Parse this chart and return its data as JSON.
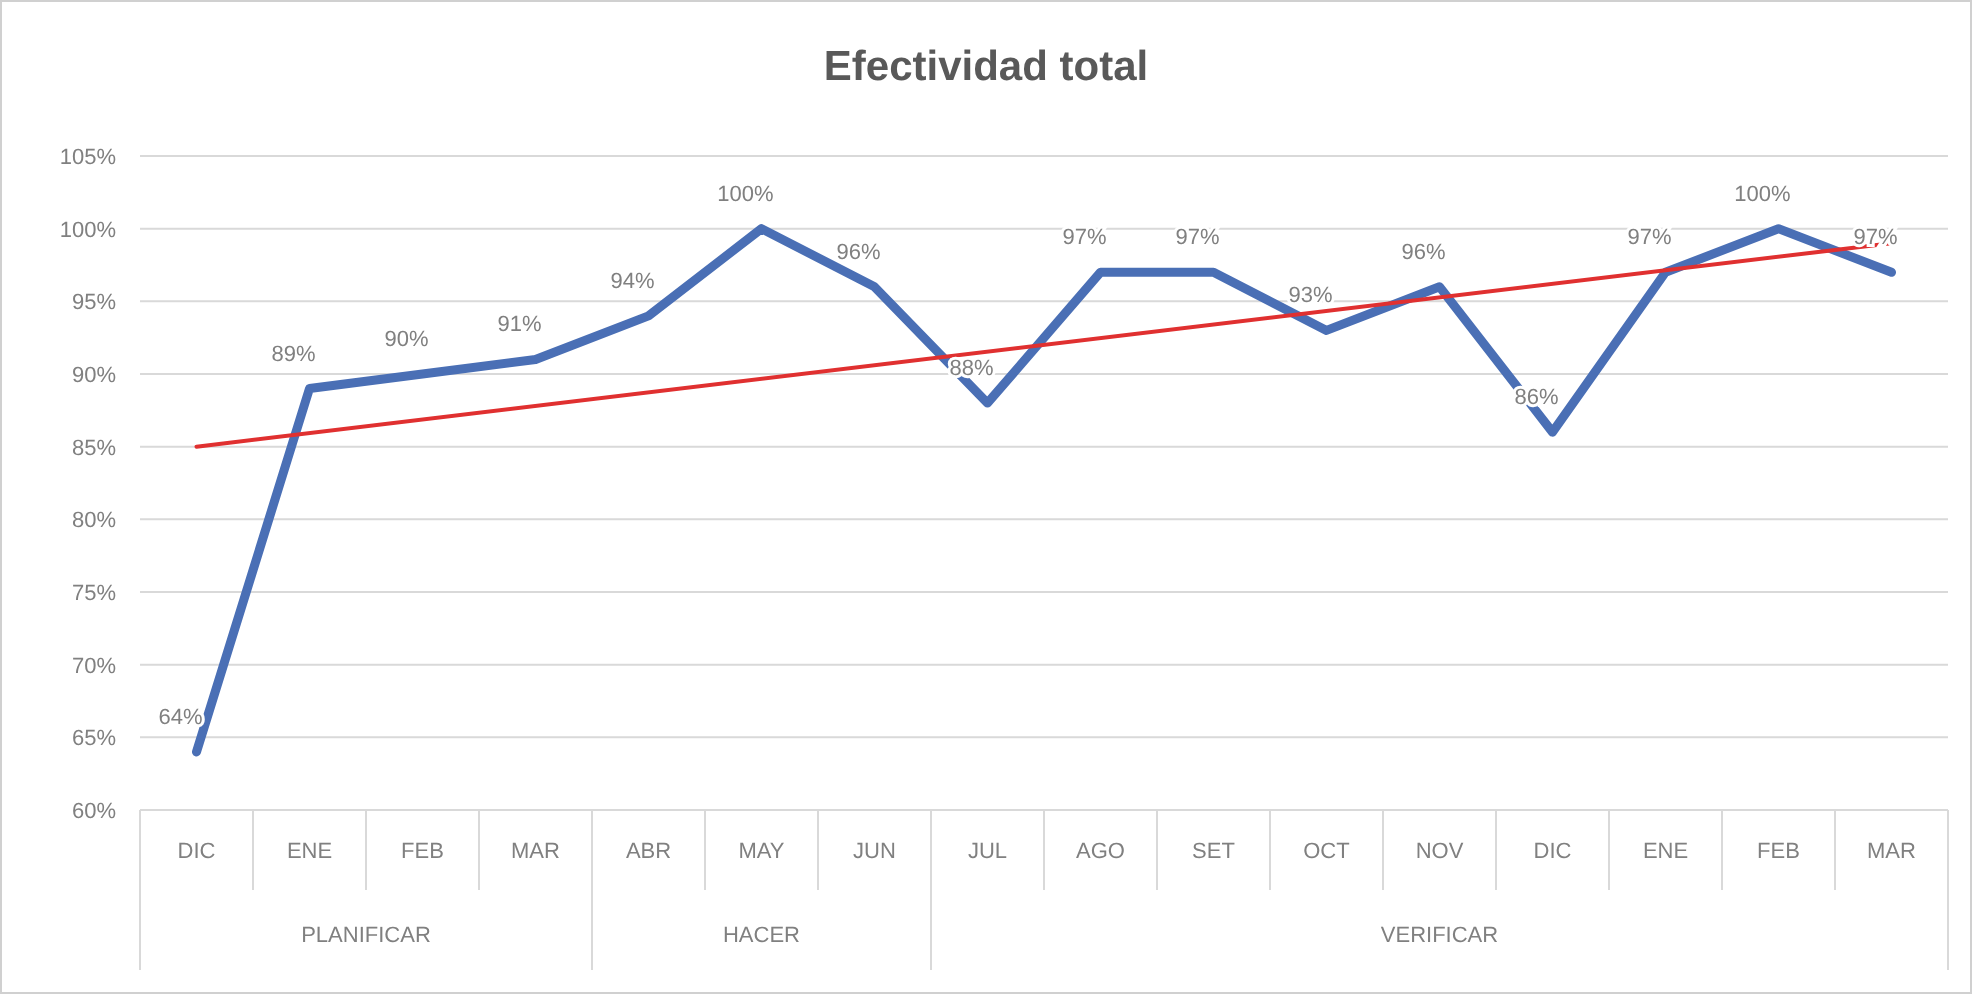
{
  "chart_data": {
    "type": "line",
    "title": "Efectividad total",
    "categories": [
      "DIC",
      "ENE",
      "FEB",
      "MAR",
      "ABR",
      "MAY",
      "JUN",
      "JUL",
      "AGO",
      "SET",
      "OCT",
      "NOV",
      "DIC",
      "ENE",
      "FEB",
      "MAR"
    ],
    "series": [
      {
        "color": "#4a6fb5",
        "values": [
          64,
          89,
          90,
          91,
          94,
          100,
          96,
          88,
          97,
          97,
          93,
          96,
          86,
          97,
          100,
          97
        ],
        "value_labels": [
          "64%",
          "89%",
          "90%",
          "91%",
          "94%",
          "100%",
          "96%",
          "88%",
          "97%",
          "97%",
          "93%",
          "96%",
          "86%",
          "97%",
          "100%",
          "97%"
        ]
      },
      {
        "type": "line",
        "color": "#e03030",
        "values": [
          85,
          null,
          null,
          null,
          null,
          null,
          null,
          null,
          null,
          null,
          null,
          null,
          null,
          null,
          null,
          99
        ]
      }
    ],
    "annotations": [
      "PLANIFICAR",
      "HACER",
      "VERIFICAR"
    ],
    "ylim": [
      60,
      105
    ],
    "yticks": [
      {
        "value": 60,
        "label": "60%"
      },
      {
        "value": 65,
        "label": "65%"
      },
      {
        "value": 70,
        "label": "70%"
      },
      {
        "value": 75,
        "label": "75%"
      },
      {
        "value": 80,
        "label": "80%"
      },
      {
        "value": 85,
        "label": "85%"
      },
      {
        "value": 90,
        "label": "90%"
      },
      {
        "value": 95,
        "label": "95%"
      },
      {
        "value": 100,
        "label": "100%"
      },
      {
        "value": 105,
        "label": "105%"
      }
    ],
    "grid": "y",
    "marker": "none",
    "line_style": "solid"
  }
}
